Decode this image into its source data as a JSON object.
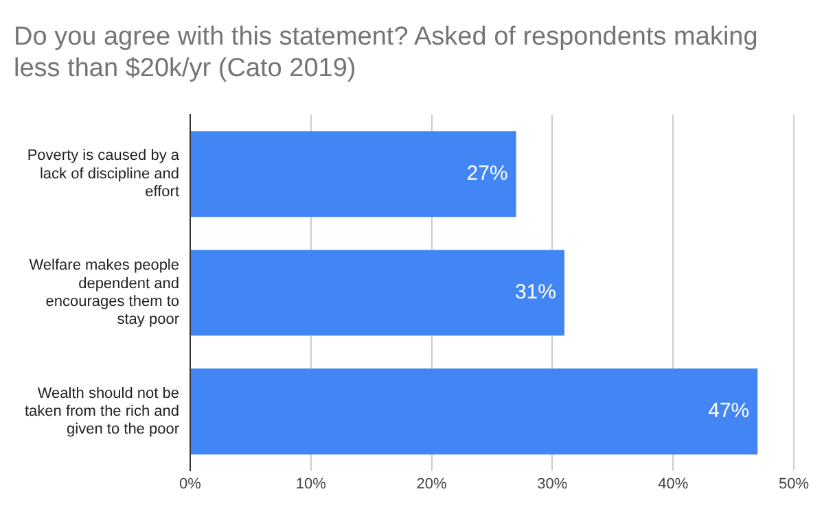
{
  "chart_data": {
    "type": "bar",
    "orientation": "horizontal",
    "title": "Do you agree with this statement? Asked of respondents making less than $20k/yr (Cato 2019)",
    "categories": [
      "Poverty is caused by a lack of discipline and effort",
      "Welfare makes people dependent and encourages them to stay poor",
      "Wealth should not be taken from the rich and given to the poor"
    ],
    "values": [
      27,
      31,
      47
    ],
    "color": "#4285f4",
    "value_labels": [
      "27%",
      "31%",
      "47%"
    ],
    "xlim": [
      0,
      50
    ],
    "xticks": [
      {
        "value": 0,
        "label": "0%"
      },
      {
        "value": 10,
        "label": "10%"
      },
      {
        "value": 20,
        "label": "20%"
      },
      {
        "value": 30,
        "label": "30%"
      },
      {
        "value": 40,
        "label": "40%"
      },
      {
        "value": 50,
        "label": "50%"
      }
    ],
    "grid": "x",
    "legend": false
  }
}
